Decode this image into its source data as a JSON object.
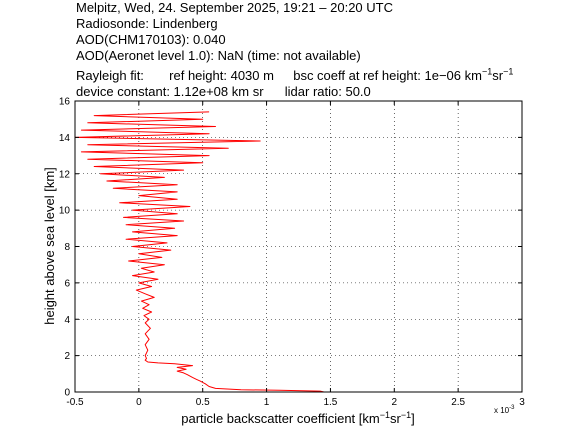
{
  "header": {
    "line1": "Melpitz, Wed, 24. September 2025, 19:21 – 20:20 UTC",
    "line2": "Radiosonde: Lindenberg",
    "line3": "AOD(CHM170103): 0.040",
    "line4": "AOD(Aeronet level 1.0): NaN   (time: not available)",
    "rayleigh_label": "Rayleigh fit:",
    "ref_height": "ref height: 4030 m",
    "bsc_coeff_prefix": "bsc coeff at ref height: 1e−06 km",
    "device_constant": "device constant: 1.12e+08 km sr",
    "lidar_ratio": "lidar ratio: 50.0"
  },
  "units": {
    "km_exp": "−1",
    "sr": "sr",
    "sr_exp": "−1",
    "bracket_close": "]"
  },
  "chart_data": {
    "type": "line",
    "xlabel": "particle backscatter coefficient [km",
    "ylabel": "height above sea level [km]",
    "x_multiplier": "x 10",
    "x_multiplier_exp": "-3",
    "xlim": [
      -0.5,
      3
    ],
    "ylim": [
      0,
      16
    ],
    "xticks": [
      -0.5,
      0,
      0.5,
      1,
      1.5,
      2,
      2.5,
      3
    ],
    "xtick_labels": [
      "-0.5",
      "0",
      "0.5",
      "1",
      "1.5",
      "2",
      "2.5",
      "3"
    ],
    "yticks": [
      0,
      2,
      4,
      6,
      8,
      10,
      12,
      14,
      16
    ],
    "ytick_labels": [
      "0",
      "2",
      "4",
      "6",
      "8",
      "10",
      "12",
      "14",
      "16"
    ],
    "grid": true,
    "line_color": "#ff0000",
    "series": [
      {
        "points": [
          [
            1.45,
            0.0
          ],
          [
            1.42,
            0.05
          ],
          [
            1.1,
            0.1
          ],
          [
            0.8,
            0.12
          ],
          [
            0.6,
            0.2
          ],
          [
            0.55,
            0.3
          ],
          [
            0.52,
            0.45
          ],
          [
            0.48,
            0.6
          ],
          [
            0.45,
            0.7
          ],
          [
            0.42,
            0.8
          ],
          [
            0.38,
            0.95
          ],
          [
            0.35,
            1.05
          ],
          [
            0.3,
            1.15
          ],
          [
            0.37,
            1.25
          ],
          [
            0.3,
            1.35
          ],
          [
            0.42,
            1.45
          ],
          [
            0.28,
            1.55
          ],
          [
            0.15,
            1.6
          ],
          [
            0.07,
            1.65
          ],
          [
            0.05,
            1.75
          ],
          [
            0.06,
            1.85
          ],
          [
            0.05,
            2.0
          ],
          [
            0.07,
            2.3
          ],
          [
            0.05,
            2.6
          ],
          [
            0.08,
            2.9
          ],
          [
            0.05,
            3.2
          ],
          [
            0.09,
            3.5
          ],
          [
            0.05,
            3.8
          ],
          [
            0.08,
            4.0
          ],
          [
            0.04,
            4.2
          ],
          [
            0.1,
            4.4
          ],
          [
            0.03,
            4.6
          ],
          [
            0.08,
            4.8
          ],
          [
            0.02,
            5.0
          ],
          [
            0.12,
            5.2
          ],
          [
            0.05,
            5.4
          ],
          [
            -0.02,
            5.6
          ],
          [
            0.1,
            5.8
          ],
          [
            0.0,
            6.0
          ],
          [
            0.15,
            6.2
          ],
          [
            -0.05,
            6.4
          ],
          [
            0.12,
            6.6
          ],
          [
            0.02,
            6.8
          ],
          [
            0.2,
            7.0
          ],
          [
            -0.08,
            7.2
          ],
          [
            0.18,
            7.4
          ],
          [
            0.0,
            7.6
          ],
          [
            0.25,
            7.8
          ],
          [
            -0.05,
            8.0
          ],
          [
            0.22,
            8.2
          ],
          [
            -0.1,
            8.4
          ],
          [
            0.3,
            8.6
          ],
          [
            -0.05,
            8.8
          ],
          [
            0.28,
            9.0
          ],
          [
            -0.1,
            9.2
          ],
          [
            0.35,
            9.4
          ],
          [
            -0.12,
            9.6
          ],
          [
            0.3,
            9.8
          ],
          [
            -0.05,
            10.0
          ],
          [
            0.4,
            10.2
          ],
          [
            -0.15,
            10.4
          ],
          [
            0.3,
            10.6
          ],
          [
            0.0,
            10.8
          ],
          [
            0.3,
            11.0
          ],
          [
            -0.2,
            11.2
          ],
          [
            0.3,
            11.4
          ],
          [
            -0.25,
            11.6
          ],
          [
            0.2,
            11.8
          ],
          [
            -0.3,
            12.0
          ],
          [
            0.35,
            12.2
          ],
          [
            -0.35,
            12.4
          ],
          [
            0.5,
            12.6
          ],
          [
            -0.4,
            12.8
          ],
          [
            0.55,
            13.0
          ],
          [
            -0.45,
            13.2
          ],
          [
            0.7,
            13.4
          ],
          [
            -0.4,
            13.6
          ],
          [
            0.95,
            13.8
          ],
          [
            -0.5,
            14.0
          ],
          [
            0.55,
            14.2
          ],
          [
            -0.45,
            14.4
          ],
          [
            0.6,
            14.6
          ],
          [
            -0.4,
            14.8
          ],
          [
            0.5,
            15.0
          ],
          [
            -0.35,
            15.2
          ],
          [
            0.55,
            15.4
          ]
        ]
      }
    ]
  }
}
